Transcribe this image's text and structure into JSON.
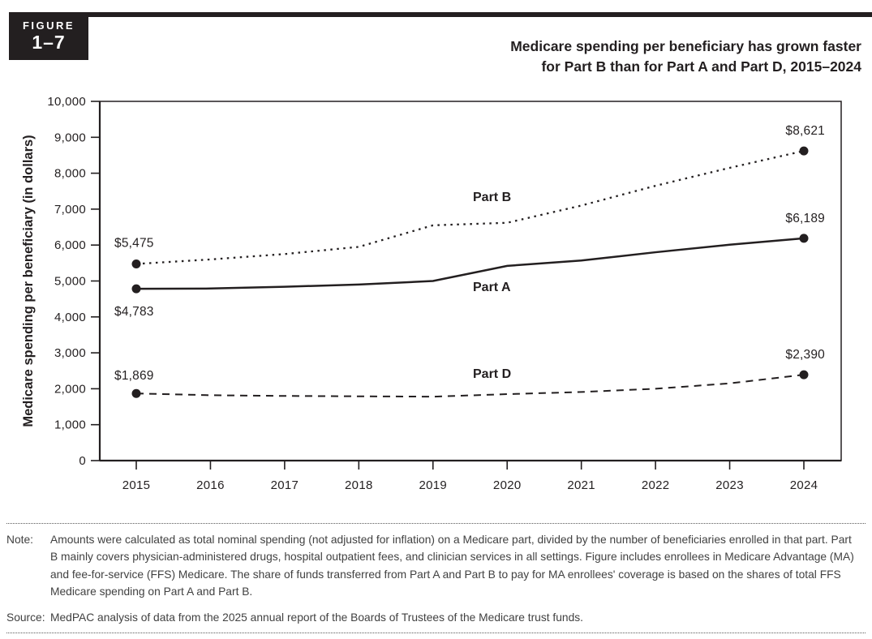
{
  "figure_badge": {
    "label": "FIGURE",
    "number": "1–7"
  },
  "title": {
    "line1": "Medicare spending per beneficiary has grown faster",
    "line2": "for Part B than for Part A and Part D, 2015–2024"
  },
  "chart_data": {
    "type": "line",
    "title": "Medicare spending per beneficiary has grown faster for Part B than for Part A and Part D, 2015–2024",
    "xlabel": "",
    "ylabel": "Medicare spending per beneficiary (in dollars)",
    "x": [
      2015,
      2016,
      2017,
      2018,
      2019,
      2020,
      2021,
      2022,
      2023,
      2024
    ],
    "ylim": [
      0,
      10000
    ],
    "ytick_step": 1000,
    "grid": false,
    "legend_position": "inline-labels",
    "series": [
      {
        "name": "Part B",
        "line_style": "dotted",
        "values": [
          5475,
          5600,
          5750,
          5950,
          6550,
          6620,
          7100,
          7650,
          8150,
          8621
        ],
        "first_label": "$5,475",
        "last_label": "$8,621"
      },
      {
        "name": "Part A",
        "line_style": "solid",
        "values": [
          4783,
          4790,
          4840,
          4900,
          5000,
          5420,
          5570,
          5800,
          6010,
          6189
        ],
        "first_label": "$4,783",
        "last_label": "$6,189"
      },
      {
        "name": "Part D",
        "line_style": "dashed",
        "values": [
          1869,
          1820,
          1800,
          1790,
          1780,
          1850,
          1910,
          2000,
          2150,
          2390
        ],
        "first_label": "$1,869",
        "last_label": "$2,390"
      }
    ]
  },
  "footer": {
    "note_label": "Note:",
    "note_text": "Amounts were calculated as total nominal spending (not adjusted for inflation) on a Medicare part, divided by the number of beneficiaries enrolled in that part. Part B mainly covers physician-administered drugs, hospital outpatient fees, and clinician services in all settings. Figure includes enrollees in Medicare Advantage (MA) and fee-for-service (FFS) Medicare. The share of funds transferred from Part A and Part B to pay for MA enrollees' coverage is based on the shares of total FFS Medicare spending on Part A and Part B.",
    "source_label": "Source:",
    "source_text": "MedPAC analysis of data from the 2025 annual report of the Boards of Trustees of the Medicare trust funds."
  },
  "colors": {
    "ink": "#231f20",
    "note_text": "#414141"
  }
}
